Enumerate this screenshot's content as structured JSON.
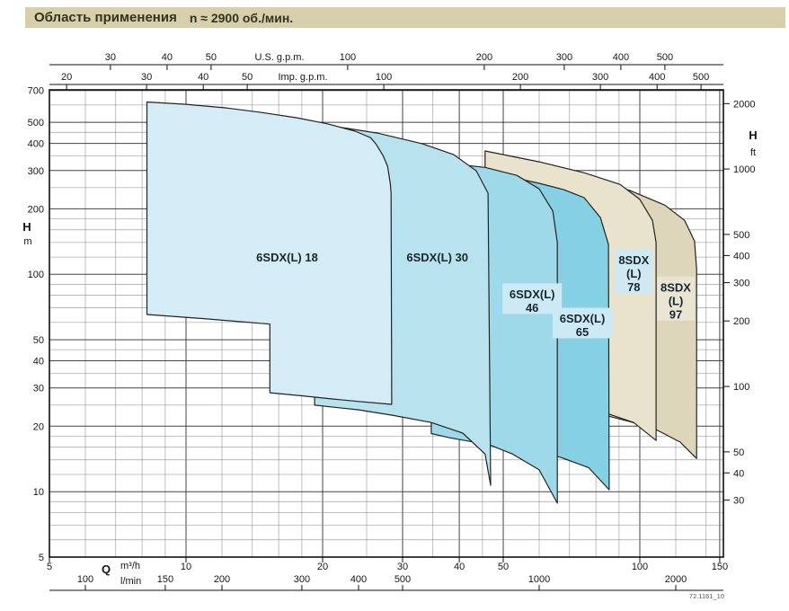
{
  "title_bar": {
    "title": "Область применения",
    "speed": "n ≈ 2900 об./мин.",
    "bg_color": "#d7cfac"
  },
  "figure_code": "72.1161_10",
  "chart_data": {
    "type": "area",
    "title": "Область применения",
    "subtitle": "n ≈ 2900 об./мин.",
    "x_scale": "log",
    "y_scale": "log",
    "grid": true,
    "x_range_m3h": [
      5,
      152.8
    ],
    "y_range_m": [
      5,
      705
    ],
    "axes": {
      "top_us_gpm": {
        "label": "U.S. g.p.m.",
        "ticks": [
          30,
          40,
          50,
          100,
          200,
          300,
          400,
          500
        ],
        "m3h_per_unit": 0.2271
      },
      "top_imp_gpm": {
        "label": "Imp. g.p.m.",
        "ticks": [
          20,
          30,
          40,
          50,
          100,
          200,
          300,
          400,
          500
        ],
        "m3h_per_unit": 0.2728
      },
      "left_m": {
        "symbol": "H",
        "unit": "m",
        "ticks": [
          700,
          500,
          400,
          300,
          200,
          100,
          50,
          40,
          30,
          20,
          10,
          5
        ]
      },
      "right_ft": {
        "symbol": "H",
        "unit": "ft",
        "ticks": [
          2000,
          1000,
          500,
          400,
          300,
          200,
          100,
          50,
          40,
          30
        ],
        "m_per_unit": 0.3048
      },
      "bottom_m3h": {
        "symbol": "Q",
        "unit": "m³/h",
        "ticks": [
          5,
          10,
          20,
          30,
          40,
          50,
          100,
          150
        ]
      },
      "bottom_lmin": {
        "unit": "l/min",
        "ticks": [
          100,
          150,
          200,
          300,
          400,
          500,
          1000,
          2000
        ],
        "m3h_per_unit": 0.06
      }
    },
    "grid_x_m3h": [
      5,
      6,
      7,
      8,
      9,
      10,
      12,
      14,
      16,
      18,
      20,
      25,
      30,
      35,
      40,
      45,
      50,
      60,
      70,
      80,
      90,
      100,
      120,
      140,
      150
    ],
    "grid_y_m": [
      5,
      6,
      7,
      8,
      9,
      10,
      12,
      14,
      16,
      18,
      20,
      25,
      30,
      35,
      40,
      45,
      50,
      60,
      70,
      80,
      90,
      100,
      120,
      140,
      160,
      180,
      200,
      250,
      300,
      350,
      400,
      450,
      500,
      600,
      700
    ],
    "series": [
      {
        "id": "8sdxl-97",
        "name": "8SDX (L) 97",
        "label_lines": [
          "8SDX",
          "(L)",
          "97"
        ],
        "color": "#ded6ba",
        "label_bg": "#eae4d2",
        "label_q": 120,
        "label_h": 75,
        "points": [
          [
            72.3,
            285
          ],
          [
            95,
            243
          ],
          [
            113.5,
            208
          ],
          [
            125.5,
            177
          ],
          [
            132,
            142
          ],
          [
            133.4,
            105
          ],
          [
            133.4,
            14.2
          ],
          [
            122.7,
            16.9
          ],
          [
            108.6,
            19.3
          ],
          [
            95,
            21
          ],
          [
            80,
            23
          ],
          [
            72.3,
            24
          ]
        ]
      },
      {
        "id": "8sdxl-78",
        "name": "8SDX (L) 78",
        "label_lines": [
          "8SDX",
          "(L)",
          "78"
        ],
        "color": "#e9e3cd",
        "label_bg": "#cfe9f3",
        "label_q": 97,
        "label_h": 100,
        "points": [
          [
            45.6,
            369
          ],
          [
            60,
            329
          ],
          [
            75.4,
            293
          ],
          [
            90.4,
            259
          ],
          [
            100,
            221
          ],
          [
            106.6,
            177
          ],
          [
            108.6,
            140
          ],
          [
            108.6,
            17.2
          ],
          [
            96.9,
            20.8
          ],
          [
            82.6,
            23.3
          ],
          [
            65.8,
            25.7
          ],
          [
            50,
            27.7
          ],
          [
            45.6,
            28.5
          ]
        ]
      },
      {
        "id": "6sdxl-65",
        "name": "6SDX(L) 65",
        "label_lines": [
          "6SDX(L)",
          "65"
        ],
        "color": "#86d0e4",
        "label_bg": "#cde9f3",
        "label_q": 74.7,
        "label_h": 58,
        "points": [
          [
            50,
            285
          ],
          [
            60,
            262
          ],
          [
            68,
            245
          ],
          [
            75.4,
            225
          ],
          [
            81.9,
            182
          ],
          [
            85.3,
            137
          ],
          [
            85.6,
            10.2
          ],
          [
            77.1,
            12.9
          ],
          [
            67.4,
            14.3
          ],
          [
            57.3,
            15.9
          ],
          [
            50,
            17.2
          ]
        ]
      },
      {
        "id": "6sdxl-46",
        "name": "6SDX(L) 46",
        "label_lines": [
          "6SDX(L)",
          "46"
        ],
        "color": "#9ed9ea",
        "label_bg": "#cde9f3",
        "label_q": 57.9,
        "label_h": 75,
        "points": [
          [
            34.7,
            330
          ],
          [
            45.6,
            310
          ],
          [
            53.6,
            285
          ],
          [
            60,
            247
          ],
          [
            64.3,
            195
          ],
          [
            65.8,
            140
          ],
          [
            65.8,
            8.85
          ],
          [
            60,
            12.6
          ],
          [
            52.4,
            14.9
          ],
          [
            46.7,
            16.4
          ],
          [
            38.1,
            17.7
          ],
          [
            34.7,
            18.5
          ]
        ]
      },
      {
        "id": "6sdxl-30",
        "name": "6SDX(L) 30",
        "label_lines": [
          "6SDX(L) 30"
        ],
        "color": "#b9e2ef",
        "label_q": 35.8,
        "label_h": 119,
        "points": [
          [
            19.2,
            495
          ],
          [
            26.4,
            446
          ],
          [
            33.2,
            398
          ],
          [
            38.9,
            355
          ],
          [
            43.6,
            299
          ],
          [
            46.3,
            236
          ],
          [
            46.9,
            10.7
          ],
          [
            45.6,
            14.9
          ],
          [
            40.7,
            18.6
          ],
          [
            34.7,
            20.8
          ],
          [
            28.4,
            22.5
          ],
          [
            24,
            23.8
          ],
          [
            19.2,
            25
          ]
        ]
      },
      {
        "id": "6sdxl-18",
        "name": "6SDX(L) 18",
        "label_lines": [
          "6SDX(L) 18"
        ],
        "color": "#d3ecf5",
        "label_q": 16.7,
        "label_h": 119,
        "points": [
          [
            8.2,
            620
          ],
          [
            10,
            605
          ],
          [
            12.2,
            583
          ],
          [
            14.5,
            557
          ],
          [
            17.5,
            525
          ],
          [
            20.5,
            492
          ],
          [
            23.6,
            455
          ],
          [
            25.5,
            425
          ],
          [
            26.2,
            398
          ],
          [
            27.2,
            350
          ],
          [
            27.8,
            314
          ],
          [
            28.2,
            260
          ],
          [
            28.3,
            236
          ],
          [
            28.4,
            25.2
          ],
          [
            24,
            26
          ],
          [
            21,
            26.7
          ],
          [
            18,
            27.6
          ],
          [
            15.3,
            28.5
          ],
          [
            15.3,
            59
          ],
          [
            11.1,
            62.3
          ],
          [
            8.2,
            65.3
          ]
        ]
      }
    ]
  }
}
